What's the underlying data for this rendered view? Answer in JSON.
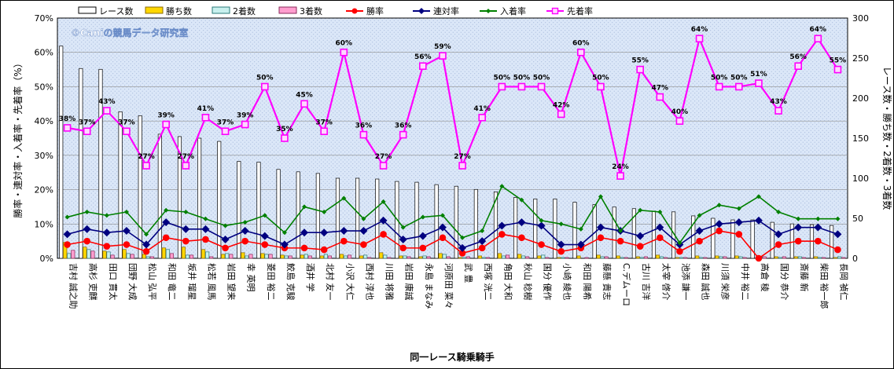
{
  "chart_data": {
    "type": "bar",
    "xlabel": "同一レース騎乗騎手",
    "ylabel_left": "勝率・連対率・入着率・先着率（%）",
    "ylabel_right": "レース数・勝ち数・2着数・3着数",
    "watermark": "©Caniの競馬データ研究室",
    "left_axis": {
      "min": 0,
      "max": 70,
      "step": 10,
      "unit": "%"
    },
    "right_axis": {
      "min": 0,
      "max": 300,
      "step": 50
    },
    "grid": true,
    "legend_position": "top",
    "categories": [
      "吉村 誠之助",
      "高杉 吏麒",
      "田口 貫太",
      "団野 大成",
      "松山 弘平",
      "和田 竜二",
      "坂井 瑠星",
      "松若 風馬",
      "岩田 望来",
      "幸 英明",
      "菱田 裕二",
      "鮫島 克駿",
      "酒井 学",
      "北村 友一",
      "小沢 大仁",
      "西村 淳也",
      "川田 将雅",
      "岩田 康誠",
      "永島 まなみ",
      "河原田 菜々",
      "武 豊",
      "西塚 洸二",
      "角田 大和",
      "秋山 稔樹",
      "国分 優作",
      "小崎 綾也",
      "和田 陽希",
      "藤懸 貴志",
      "C.デムーロ",
      "古川 吉洋",
      "太宰 啓介",
      "池添 謙一",
      "森田 誠也",
      "川須 栄彦",
      "中井 裕二",
      "高倉 稜",
      "国分 恭介",
      "斎藤 新",
      "柴田 裕一郎",
      "長岡 禎仁"
    ],
    "series": [
      {
        "name": "レース数",
        "kind": "bar",
        "axis": "right",
        "color": "#ffffff",
        "stroke": "#000000",
        "values": [
          265,
          237,
          236,
          183,
          178,
          155,
          152,
          150,
          146,
          121,
          120,
          111,
          108,
          106,
          100,
          100,
          99,
          96,
          95,
          92,
          90,
          86,
          83,
          76,
          74,
          74,
          70,
          67,
          64,
          62,
          59,
          58,
          53,
          50,
          48,
          48,
          45,
          43,
          42,
          41
        ]
      },
      {
        "name": "勝ち数",
        "kind": "bar",
        "axis": "right",
        "color": "#ffd700",
        "stroke": "#8b6b00",
        "values": [
          20,
          14,
          9,
          11,
          5,
          13,
          14,
          11,
          5,
          7,
          6,
          4,
          4,
          3,
          5,
          3,
          7,
          3,
          2,
          6,
          1,
          3,
          6,
          5,
          3,
          1,
          3,
          4,
          3,
          2,
          4,
          1,
          3,
          3,
          3,
          0,
          2,
          2,
          2,
          1
        ]
      },
      {
        "name": "2着数",
        "kind": "bar",
        "axis": "right",
        "color": "#c8f0ee",
        "stroke": "#2a7a78",
        "values": [
          6,
          11,
          8,
          6,
          2,
          11,
          4,
          8,
          6,
          3,
          5,
          3,
          5,
          5,
          3,
          4,
          4,
          3,
          3,
          5,
          1,
          1,
          3,
          3,
          4,
          1,
          0,
          2,
          1,
          1,
          2,
          1,
          1,
          2,
          2,
          2,
          1,
          2,
          1,
          2
        ]
      },
      {
        "name": "3着数",
        "kind": "bar",
        "axis": "right",
        "color": "#ff9ecf",
        "stroke": "#8b2a5b",
        "values": [
          10,
          9,
          4,
          5,
          2,
          6,
          4,
          2,
          5,
          5,
          5,
          3,
          3,
          3,
          4,
          1,
          1,
          2,
          2,
          2,
          2,
          1,
          4,
          2,
          1,
          1,
          1,
          2,
          1,
          2,
          1,
          1,
          1,
          2,
          1,
          2,
          2,
          1,
          1,
          1
        ]
      },
      {
        "name": "勝率",
        "kind": "line",
        "axis": "left",
        "color": "#ff0000",
        "values": [
          4,
          5,
          3.5,
          4,
          2,
          6,
          5,
          5.5,
          3,
          5,
          4,
          3,
          3,
          2.5,
          5,
          4,
          7,
          3,
          3,
          6,
          1.5,
          3,
          7,
          6,
          4,
          2,
          3,
          6,
          5,
          3.5,
          6,
          2,
          5,
          8,
          7,
          0,
          4,
          5,
          5,
          2.5
        ]
      },
      {
        "name": "連対率",
        "kind": "line",
        "axis": "left",
        "color": "#000080",
        "values": [
          7,
          8.5,
          7.5,
          8,
          4,
          10.5,
          8.5,
          8.5,
          5.5,
          8,
          6.5,
          4,
          7.5,
          7.5,
          8,
          8,
          11,
          5.5,
          6.5,
          9,
          3,
          5,
          9.5,
          10.5,
          9.5,
          4,
          4,
          9,
          8,
          6.5,
          9,
          4,
          8,
          10,
          10.5,
          11,
          7,
          9,
          9,
          7
        ]
      },
      {
        "name": "入着率",
        "kind": "line",
        "axis": "left",
        "color": "#008000",
        "values": [
          12,
          13.5,
          12.5,
          13.5,
          7,
          14,
          13.5,
          11.5,
          9.5,
          10.5,
          12.5,
          7.5,
          15,
          13.5,
          17.5,
          11.5,
          16.5,
          9,
          12,
          12.5,
          6,
          8,
          21,
          17,
          11,
          10,
          8.5,
          18,
          8,
          14,
          13.5,
          4.5,
          12.5,
          15.5,
          14.5,
          18,
          13.5,
          11.5,
          11.5,
          11.5
        ]
      },
      {
        "name": "先着率",
        "kind": "line",
        "axis": "left",
        "color": "#ff00ff",
        "values": [
          38,
          37,
          43,
          37,
          27,
          39,
          27,
          41,
          37,
          39,
          50,
          35,
          45,
          37,
          60,
          36,
          27,
          36,
          56,
          59,
          27,
          41,
          50,
          50,
          50,
          42,
          60,
          50,
          24,
          55,
          47,
          40,
          64,
          50,
          50,
          51,
          43,
          56,
          64,
          55
        ]
      }
    ]
  }
}
